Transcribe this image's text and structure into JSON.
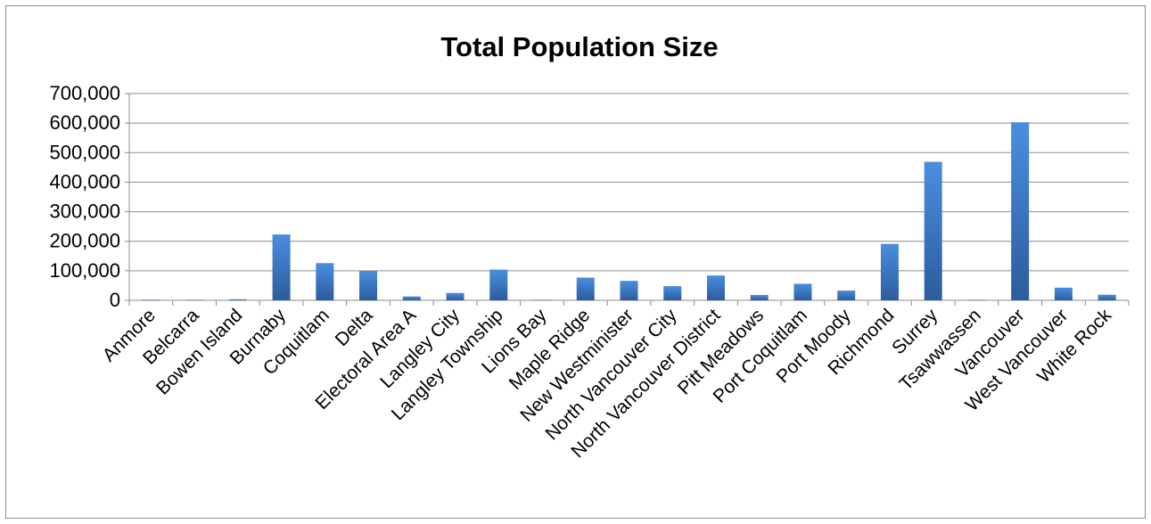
{
  "chart_data": {
    "type": "bar",
    "title": "Total Population Size",
    "xlabel": "",
    "ylabel": "",
    "ylim": [
      0,
      700000
    ],
    "yticks": [
      0,
      100000,
      200000,
      300000,
      400000,
      500000,
      600000,
      700000
    ],
    "ytick_labels": [
      "0",
      "100,000",
      "200,000",
      "300,000",
      "400,000",
      "500,000",
      "600,000",
      "700,000"
    ],
    "grid": true,
    "legend": "none",
    "categories": [
      "Anmore",
      "Belcarra",
      "Bowen Island",
      "Burnaby",
      "Coquitlam",
      "Delta",
      "Electoral Area A",
      "Langley City",
      "Langley Township",
      "Lions Bay",
      "Maple Ridge",
      "New Westminister",
      "North Vancouver City",
      "North Vancouver District",
      "Pitt Meadows",
      "Port Coquitlam",
      "Port Moody",
      "Richmond",
      "Surrey",
      "Tsawwassen",
      "Vancouver",
      "West Vancouver",
      "White Rock"
    ],
    "values": [
      2100,
      650,
      3500,
      223000,
      126000,
      100000,
      13000,
      25000,
      104000,
      1300,
      77000,
      66000,
      48000,
      84000,
      18000,
      56000,
      33000,
      191000,
      469000,
      500,
      603000,
      43000,
      19000
    ],
    "bar_color": "#3f7fcf",
    "bar_color_dark": "#2a5a9a"
  }
}
